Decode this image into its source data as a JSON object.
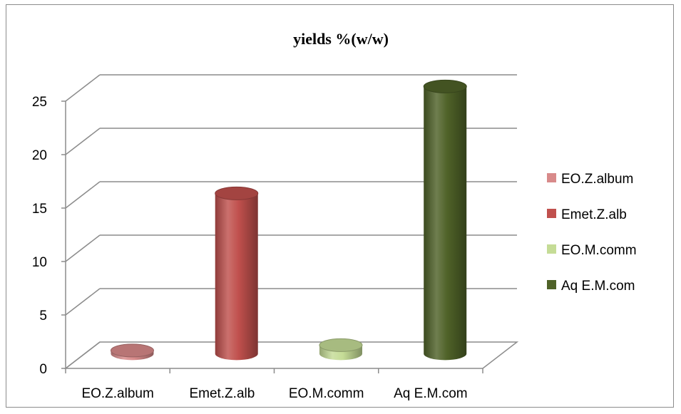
{
  "chart_data": {
    "type": "bar",
    "style": "3d-cylinder",
    "title": "yields %(w/w)",
    "xlabel": "",
    "ylabel": "",
    "categories": [
      "EO.Z.album",
      "Emet.Z.alb",
      "EO.M.comm",
      "Aq E.M.com"
    ],
    "series": [
      {
        "name": "EO.Z.album",
        "color": "#d88a8a",
        "values": [
          0.3,
          null,
          null,
          null
        ]
      },
      {
        "name": "Emet.Z.alb",
        "color": "#c0504d",
        "values": [
          null,
          15,
          null,
          null
        ]
      },
      {
        "name": "EO.M.comm",
        "color": "#c5dc96",
        "values": [
          null,
          null,
          0.8,
          null
        ]
      },
      {
        "name": "Aq E.M.com",
        "color": "#4f6228",
        "values": [
          null,
          null,
          null,
          25
        ]
      }
    ],
    "ylim": [
      0,
      25
    ],
    "yticks": [
      0,
      5,
      10,
      15,
      20,
      25
    ],
    "grid": true,
    "legend_position": "right"
  }
}
